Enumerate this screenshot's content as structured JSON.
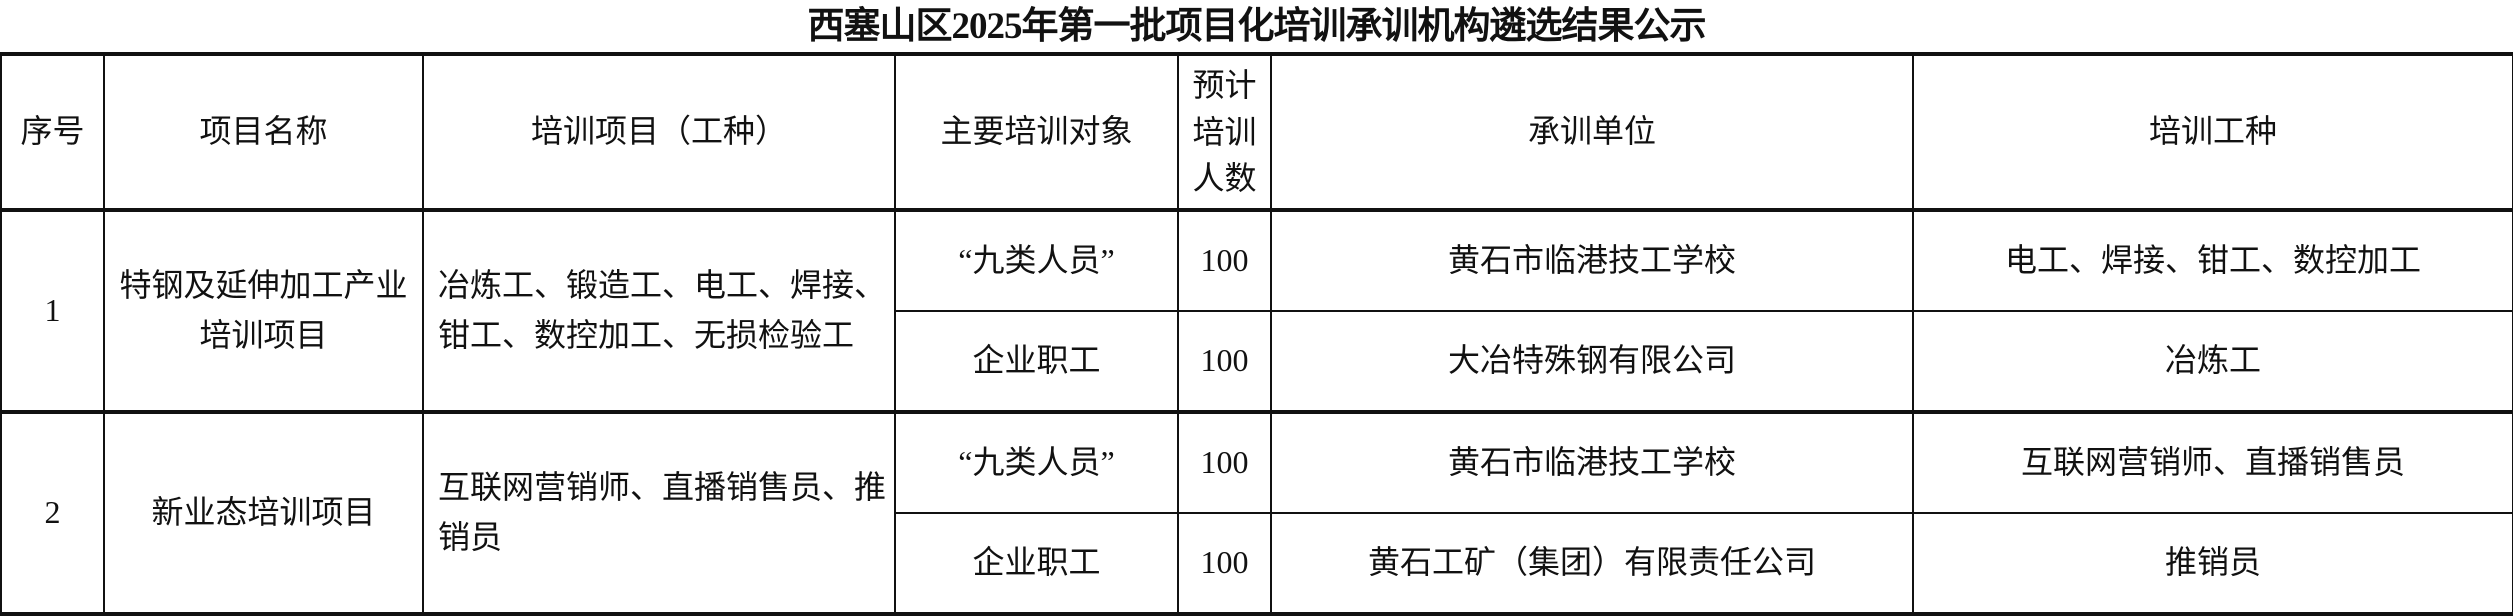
{
  "title": "西塞山区2025年第一批项目化培训承训机构遴选结果公示",
  "headers": {
    "index": "序号",
    "project_name": "项目名称",
    "training_items": "培训项目（工种）",
    "target": "主要培训对象",
    "planned_count": "预计培训人数",
    "provider": "承训单位",
    "trade": "培训工种"
  },
  "projects": [
    {
      "index": "1",
      "name": "特钢及延伸加工产业培训项目",
      "items": "冶炼工、锻造工、电工、焊接、钳工、数控加工、无损检验工",
      "rows": [
        {
          "target": "“九类人员”",
          "count": "100",
          "provider": "黄石市临港技工学校",
          "trade": "电工、焊接、钳工、数控加工"
        },
        {
          "target": "企业职工",
          "count": "100",
          "provider": "大冶特殊钢有限公司",
          "trade": "冶炼工"
        }
      ]
    },
    {
      "index": "2",
      "name": "新业态培训项目",
      "items": "互联网营销师、直播销售员、推销员",
      "rows": [
        {
          "target": "“九类人员”",
          "count": "100",
          "provider": "黄石市临港技工学校",
          "trade": "互联网营销师、直播销售员"
        },
        {
          "target": "企业职工",
          "count": "100",
          "provider": "黄石工矿（集团）有限责任公司",
          "trade": "推销员"
        }
      ]
    }
  ]
}
